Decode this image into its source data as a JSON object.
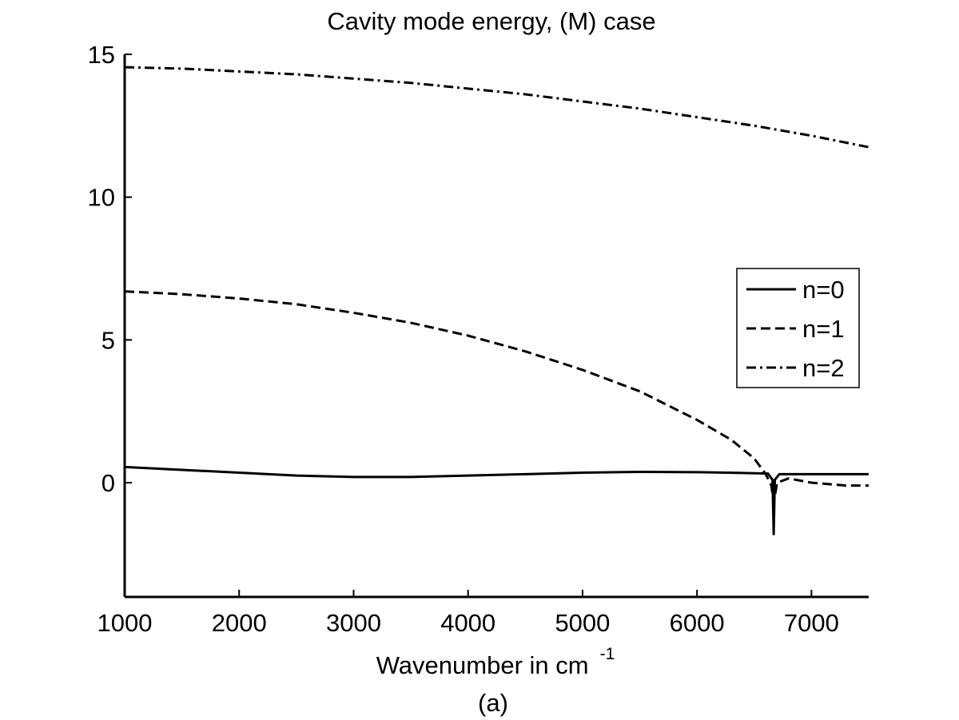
{
  "chart_data": {
    "type": "line",
    "title": "Cavity mode energy, (M) case",
    "xlabel": "Wavenumber in cm",
    "xlabel_superscript": "-1",
    "caption": "(a)",
    "xlim": [
      1000,
      7500
    ],
    "ylim": [
      -4,
      15
    ],
    "x_ticks": [
      1000,
      2000,
      3000,
      4000,
      5000,
      6000,
      7000
    ],
    "x_tick_labels": [
      "1000",
      "2000",
      "3000",
      "4000",
      "5000",
      "6000",
      "7000"
    ],
    "y_ticks": [
      0,
      5,
      10,
      15
    ],
    "y_tick_labels": [
      "0",
      "5",
      "10",
      "15"
    ],
    "grid": false,
    "legend_position": "right",
    "series": [
      {
        "name": "n=0",
        "style": "solid",
        "x": [
          1000,
          1500,
          2000,
          2500,
          3000,
          3500,
          4000,
          4500,
          5000,
          5500,
          6000,
          6400,
          6620,
          6660,
          6670,
          6680,
          6720,
          7000,
          7500
        ],
        "y": [
          0.55,
          0.45,
          0.35,
          0.25,
          0.2,
          0.2,
          0.25,
          0.3,
          0.35,
          0.38,
          0.37,
          0.34,
          0.32,
          0.1,
          -1.8,
          0.1,
          0.3,
          0.3,
          0.3
        ]
      },
      {
        "name": "n=1",
        "style": "dashed",
        "x": [
          1000,
          1500,
          2000,
          2500,
          3000,
          3500,
          4000,
          4500,
          5000,
          5500,
          6000,
          6300,
          6500,
          6600,
          6650,
          6670,
          6700,
          6800,
          7000,
          7300,
          7500
        ],
        "y": [
          6.7,
          6.6,
          6.45,
          6.25,
          5.95,
          5.6,
          5.15,
          4.6,
          3.95,
          3.2,
          2.2,
          1.5,
          0.85,
          0.3,
          -0.1,
          -0.7,
          0.0,
          0.15,
          0.0,
          -0.1,
          -0.1
        ]
      },
      {
        "name": "n=2",
        "style": "dashdot",
        "x": [
          1000,
          1500,
          2000,
          2500,
          3000,
          3500,
          4000,
          4500,
          5000,
          5500,
          6000,
          6500,
          7000,
          7500
        ],
        "y": [
          14.55,
          14.5,
          14.4,
          14.3,
          14.15,
          14.0,
          13.8,
          13.6,
          13.35,
          13.1,
          12.8,
          12.5,
          12.15,
          11.75
        ]
      }
    ]
  }
}
